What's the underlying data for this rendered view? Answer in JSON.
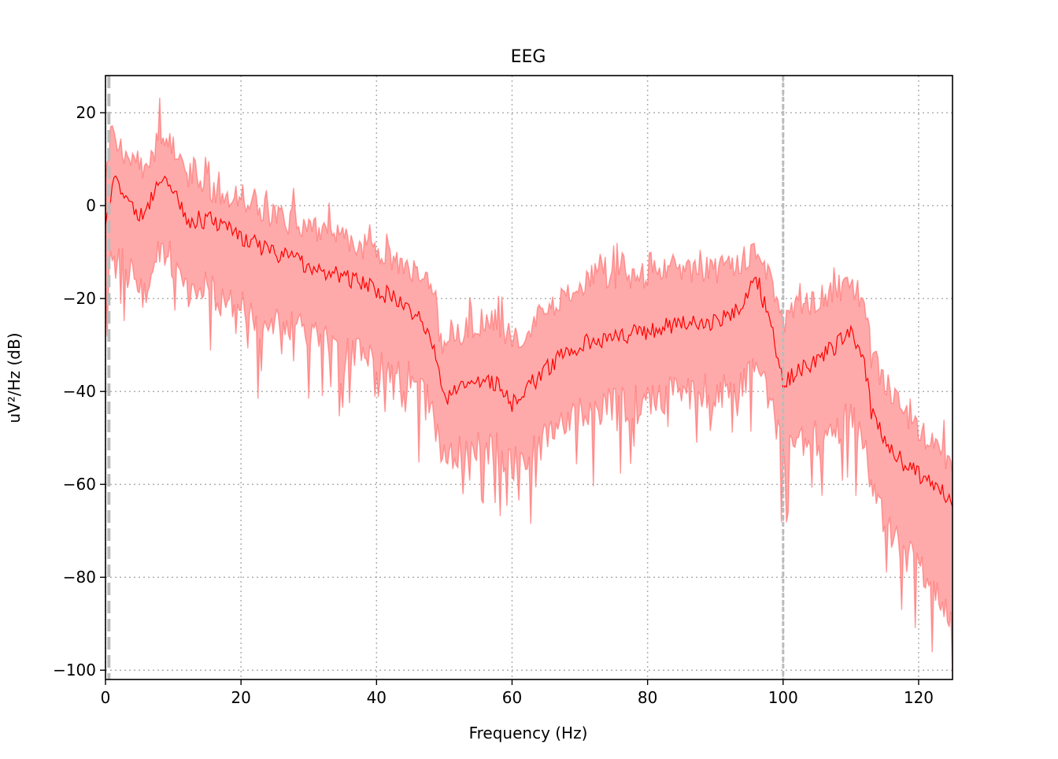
{
  "chart_data": {
    "type": "line",
    "title": "EEG",
    "xlabel": "Frequency (Hz)",
    "ylabel": "uV²/Hz (dB)",
    "xlim": [
      0,
      125
    ],
    "ylim": [
      -102,
      28
    ],
    "xticks": [
      0,
      20,
      40,
      60,
      80,
      100,
      120
    ],
    "yticks": [
      20,
      0,
      -20,
      -40,
      -60,
      -80,
      -100
    ],
    "xtick_labels": [
      "0",
      "20",
      "40",
      "60",
      "80",
      "100",
      "120"
    ],
    "ytick_labels": [
      "20",
      "0",
      "−20",
      "−40",
      "−60",
      "−80",
      "−100"
    ],
    "grid": true,
    "vlines": [
      0.5,
      100
    ],
    "colors": {
      "line": "#ff0000",
      "band": "#ffaaaa",
      "band_edge": "#ff6666",
      "vline": "#bbbbbb",
      "grid": "#b0b0b0"
    },
    "series": [
      {
        "name": "mean",
        "x": [
          0,
          1,
          2,
          4,
          5,
          6,
          8,
          9,
          10,
          12,
          15,
          18,
          20,
          25,
          30,
          35,
          40,
          45,
          48,
          50,
          52,
          55,
          58,
          60,
          62,
          65,
          70,
          75,
          80,
          85,
          90,
          94,
          96,
          98,
          100,
          102,
          105,
          108,
          110,
          112,
          113,
          115,
          118,
          120,
          123,
          125
        ],
        "mean": [
          -5,
          5,
          4,
          0,
          -3,
          -1,
          6,
          5,
          3,
          -3,
          -3,
          -5,
          -7,
          -10,
          -13,
          -15,
          -18,
          -22,
          -28,
          -42,
          -40,
          -38,
          -38,
          -43,
          -40,
          -35,
          -30,
          -28,
          -27,
          -25,
          -25,
          -22,
          -15,
          -25,
          -38,
          -36,
          -33,
          -30,
          -27,
          -33,
          -45,
          -50,
          -56,
          -58,
          -61,
          -64
        ],
        "upper": [
          5,
          18,
          12,
          8,
          6,
          8,
          15,
          14,
          12,
          5,
          4,
          2,
          2,
          -2,
          -5,
          -7,
          -10,
          -13,
          -18,
          -32,
          -28,
          -25,
          -25,
          -30,
          -27,
          -22,
          -17,
          -15,
          -15,
          -14,
          -14,
          -12,
          -9,
          -15,
          -26,
          -22,
          -20,
          -19,
          -18,
          -20,
          -32,
          -38,
          -45,
          -48,
          -53,
          -55
        ],
        "lower": [
          -20,
          -10,
          -12,
          -15,
          -18,
          -18,
          -10,
          -10,
          -12,
          -18,
          -18,
          -20,
          -22,
          -25,
          -28,
          -30,
          -33,
          -37,
          -42,
          -55,
          -53,
          -52,
          -52,
          -56,
          -54,
          -50,
          -45,
          -43,
          -42,
          -40,
          -40,
          -38,
          -35,
          -40,
          -55,
          -52,
          -50,
          -48,
          -45,
          -50,
          -62,
          -68,
          -75,
          -78,
          -82,
          -90
        ]
      }
    ]
  }
}
